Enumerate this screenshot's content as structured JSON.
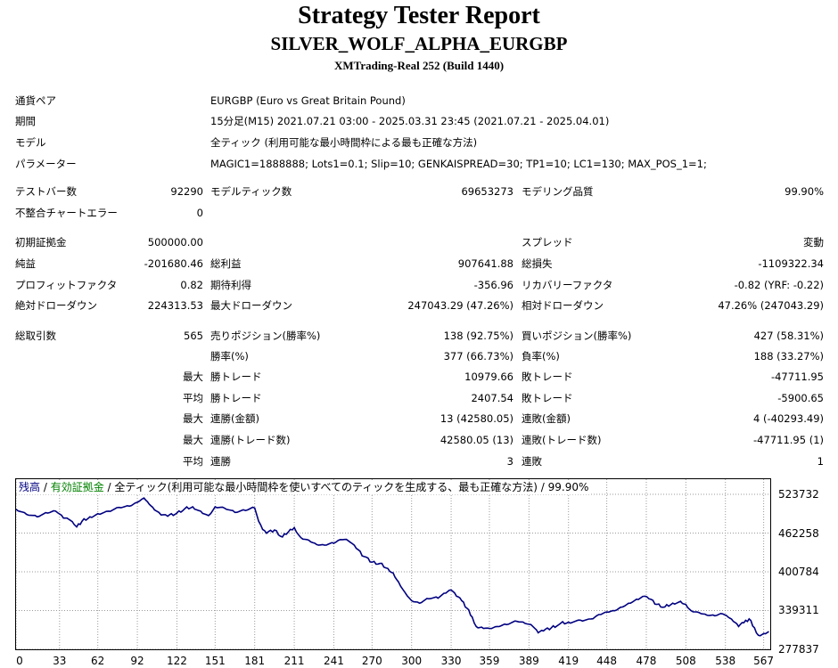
{
  "header": {
    "title": "Strategy Tester Report",
    "subtitle": "SILVER_WOLF_ALPHA_EURGBP",
    "build": "XMTrading-Real 252 (Build 1440)"
  },
  "info": {
    "symbol_label": "通貨ペア",
    "symbol_value": "EURGBP (Euro vs Great Britain Pound)",
    "period_label": "期間",
    "period_value": "15分足(M15) 2021.07.21 03:00 - 2025.03.31 23:45 (2021.07.21 - 2025.04.01)",
    "model_label": "モデル",
    "model_value": "全ティック (利用可能な最小時間枠による最も正確な方法)",
    "params_label": "パラメーター",
    "params_value": "MAGIC1=1888888; Lots1=0.1; Slip=10; GENKAISPREAD=30; TP1=10; LC1=130; MAX_POS_1=1;"
  },
  "stats": {
    "bars_label": "テストバー数",
    "bars_value": "92290",
    "ticks_label": "モデルティック数",
    "ticks_value": "69653273",
    "quality_label": "モデリング品質",
    "quality_value": "99.90%",
    "mismatch_label": "不整合チャートエラー",
    "mismatch_value": "0",
    "deposit_label": "初期証拠金",
    "deposit_value": "500000.00",
    "spread_label": "スプレッド",
    "spread_value": "変動",
    "net_label": "純益",
    "net_value": "-201680.46",
    "gross_profit_label": "総利益",
    "gross_profit_value": "907641.88",
    "gross_loss_label": "総損失",
    "gross_loss_value": "-1109322.34",
    "pf_label": "プロフィットファクタ",
    "pf_value": "0.82",
    "expected_label": "期待利得",
    "expected_value": "-356.96",
    "recovery_label": "リカバリーファクタ",
    "recovery_value": "-0.82 (YRF: -0.22)",
    "abs_dd_label": "絶対ドローダウン",
    "abs_dd_value": "224313.53",
    "max_dd_label": "最大ドローダウン",
    "max_dd_value": "247043.29 (47.26%)",
    "rel_dd_label": "相対ドローダウン",
    "rel_dd_value": "47.26% (247043.29)",
    "trades_label": "総取引数",
    "trades_value": "565",
    "short_label": "売りポジション(勝率%)",
    "short_value": "138 (92.75%)",
    "long_label": "買いポジション(勝率%)",
    "long_value": "427 (58.31%)",
    "win_pct_label": "勝率(%)",
    "win_pct_value": "377 (66.73%)",
    "loss_pct_label": "負率(%)",
    "loss_pct_value": "188 (33.27%)",
    "max_word": "最大",
    "avg_word": "平均",
    "largest_win_label": "勝トレード",
    "largest_win_value": "10979.66",
    "largest_loss_label": "敗トレード",
    "largest_loss_value": "-47711.95",
    "avg_win_label": "勝トレード",
    "avg_win_value": "2407.54",
    "avg_loss_label": "敗トレード",
    "avg_loss_value": "-5900.65",
    "max_cons_wins_label": "連勝(金額)",
    "max_cons_wins_value": "13 (42580.05)",
    "max_cons_losses_label": "連敗(金額)",
    "max_cons_losses_value": "4 (-40293.49)",
    "max_cons_profit_label": "連勝(トレード数)",
    "max_cons_profit_value": "42580.05 (13)",
    "max_cons_loss_label": "連敗(トレード数)",
    "max_cons_loss_value": "-47711.95 (1)",
    "avg_cons_wins_label": "連勝",
    "avg_cons_wins_value": "3",
    "avg_cons_losses_label": "連敗",
    "avg_cons_losses_value": "1"
  },
  "legend": {
    "balance": "残高",
    "sep1": " / ",
    "equity": "有効証拠金",
    "sep2": " / ",
    "desc": "全ティック(利用可能な最小時間枠を使いすべてのティックを生成する、最も正確な方法) / 99.90%"
  },
  "colors": {
    "balance": "#000080",
    "equity": "#008000"
  },
  "chart_data": {
    "type": "line",
    "yticks": [
      "523732",
      "462258",
      "400784",
      "339311",
      "277837"
    ],
    "ylim": [
      277837,
      523732
    ],
    "xticks": [
      "0",
      "33",
      "62",
      "92",
      "122",
      "151",
      "181",
      "211",
      "241",
      "270",
      "300",
      "330",
      "359",
      "389",
      "419",
      "448",
      "478",
      "508",
      "538",
      "567"
    ],
    "xlim": [
      0,
      572
    ],
    "series": [
      {
        "values": [
          [
            0,
            500000
          ],
          [
            8,
            492000
          ],
          [
            16,
            488000
          ],
          [
            24,
            494000
          ],
          [
            30,
            497000
          ],
          [
            36,
            486000
          ],
          [
            40,
            484000
          ],
          [
            44,
            476000
          ],
          [
            46,
            472000
          ],
          [
            50,
            481000
          ],
          [
            56,
            488000
          ],
          [
            62,
            493000
          ],
          [
            70,
            497000
          ],
          [
            78,
            503000
          ],
          [
            86,
            505000
          ],
          [
            92,
            511000
          ],
          [
            97,
            518000
          ],
          [
            101,
            508000
          ],
          [
            105,
            499000
          ],
          [
            110,
            491000
          ],
          [
            115,
            489000
          ],
          [
            122,
            494000
          ],
          [
            128,
            501000
          ],
          [
            134,
            504000
          ],
          [
            140,
            497000
          ],
          [
            146,
            490000
          ],
          [
            151,
            504000
          ],
          [
            158,
            502000
          ],
          [
            166,
            495000
          ],
          [
            174,
            498000
          ],
          [
            181,
            502000
          ],
          [
            184,
            481000
          ],
          [
            187,
            468000
          ],
          [
            190,
            462000
          ],
          [
            196,
            467000
          ],
          [
            202,
            456000
          ],
          [
            208,
            468000
          ],
          [
            211,
            471000
          ],
          [
            216,
            455000
          ],
          [
            222,
            451000
          ],
          [
            228,
            444000
          ],
          [
            234,
            443000
          ],
          [
            241,
            446000
          ],
          [
            246,
            452000
          ],
          [
            252,
            450000
          ],
          [
            258,
            438000
          ],
          [
            264,
            425000
          ],
          [
            270,
            416000
          ],
          [
            276,
            414000
          ],
          [
            282,
            406000
          ],
          [
            286,
            399000
          ],
          [
            290,
            385000
          ],
          [
            295,
            368000
          ],
          [
            300,
            355000
          ],
          [
            306,
            351000
          ],
          [
            313,
            358000
          ],
          [
            320,
            359000
          ],
          [
            326,
            367000
          ],
          [
            330,
            372000
          ],
          [
            334,
            362000
          ],
          [
            338,
            355000
          ],
          [
            342,
            343000
          ],
          [
            346,
            329000
          ],
          [
            349,
            314000
          ],
          [
            353,
            313000
          ],
          [
            359,
            311000
          ],
          [
            365,
            314000
          ],
          [
            372,
            317000
          ],
          [
            380,
            322000
          ],
          [
            386,
            319000
          ],
          [
            392,
            314000
          ],
          [
            396,
            304000
          ],
          [
            400,
            307000
          ],
          [
            406,
            312000
          ],
          [
            413,
            319000
          ],
          [
            419,
            321000
          ],
          [
            428,
            324000
          ],
          [
            436,
            326000
          ],
          [
            442,
            333000
          ],
          [
            448,
            337000
          ],
          [
            454,
            339000
          ],
          [
            460,
            345000
          ],
          [
            466,
            351000
          ],
          [
            472,
            357000
          ],
          [
            477,
            362000
          ],
          [
            480,
            358000
          ],
          [
            486,
            349000
          ],
          [
            492,
            345000
          ],
          [
            498,
            351000
          ],
          [
            504,
            354000
          ],
          [
            508,
            349000
          ],
          [
            512,
            339000
          ],
          [
            518,
            336000
          ],
          [
            524,
            332000
          ],
          [
            530,
            331000
          ],
          [
            536,
            334000
          ],
          [
            540,
            329000
          ],
          [
            544,
            322000
          ],
          [
            548,
            314000
          ],
          [
            552,
            320000
          ],
          [
            556,
            326000
          ],
          [
            560,
            312000
          ],
          [
            563,
            300000
          ],
          [
            567,
            303000
          ],
          [
            571,
            306000
          ]
        ]
      }
    ]
  }
}
